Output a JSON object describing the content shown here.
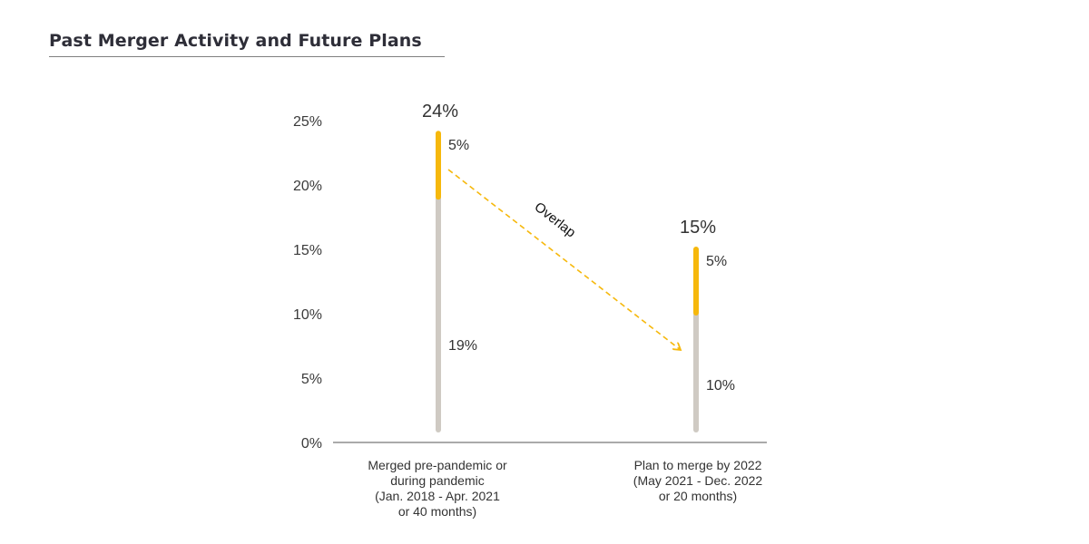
{
  "title": "Past Merger Activity and Future Plans",
  "colors": {
    "base": "#cfcac3",
    "top": "#f6b80c",
    "axis": "#555555",
    "arrow": "#f6b80c"
  },
  "chart_data": {
    "type": "bar",
    "stacked": true,
    "title": "",
    "xlabel": "",
    "ylabel": "",
    "ylim": [
      0,
      25
    ],
    "yticks": [
      "0%",
      "5%",
      "10%",
      "15%",
      "20%",
      "25%"
    ],
    "categories": [
      [
        "Merged pre-pandemic or",
        "during pandemic",
        "(Jan. 2018 - Apr. 2021",
        "or 40 months)"
      ],
      [
        "Plan to merge by 2022",
        "(May 2021 - Dec. 2022",
        "or 20 months)"
      ]
    ],
    "series": [
      {
        "values": [
          19,
          10
        ],
        "labels": [
          "19%",
          "10%"
        ],
        "color": "#cfcac3"
      },
      {
        "values": [
          5,
          5
        ],
        "labels": [
          "5%",
          "5%"
        ],
        "color": "#f6b80c"
      }
    ],
    "totals": [
      24,
      15
    ],
    "total_labels": [
      "24%",
      "15%"
    ],
    "annotation": "Overlap"
  }
}
